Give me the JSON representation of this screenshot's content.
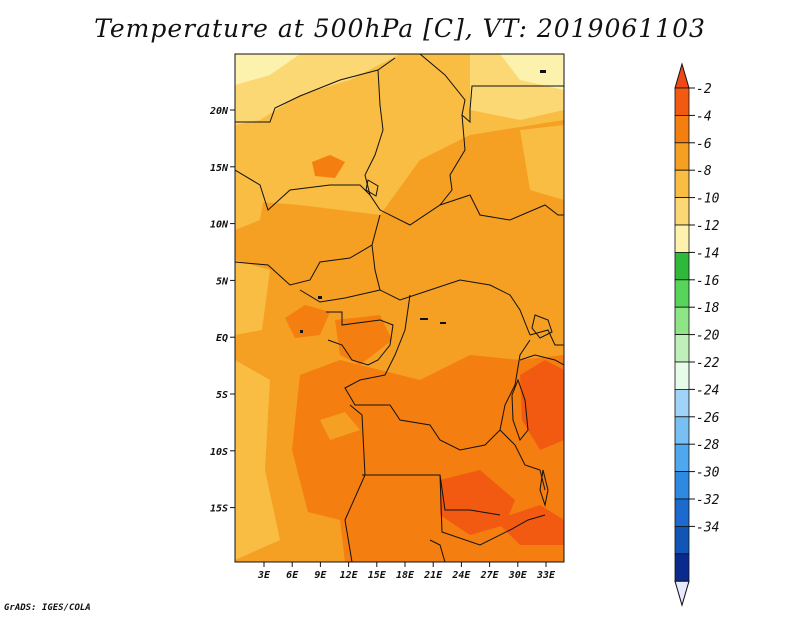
{
  "title": "Temperature at 500hPa [C], VT: 2019061103",
  "credit": "GrADS: IGES/COLA",
  "map": {
    "lat_labels": [
      "20N",
      "15N",
      "10N",
      "5N",
      "EQ",
      "5S",
      "10S",
      "15S"
    ],
    "lon_labels": [
      "3E",
      "6E",
      "9E",
      "12E",
      "15E",
      "18E",
      "21E",
      "24E",
      "27E",
      "30E",
      "33E"
    ]
  },
  "colorbar": {
    "labels": [
      "-2",
      "-4",
      "-6",
      "-8",
      "-10",
      "-12",
      "-14",
      "-16",
      "-18",
      "-20",
      "-22",
      "-24",
      "-26",
      "-28",
      "-30",
      "-32",
      "-34"
    ],
    "colors": [
      "#f25a12",
      "#f47e0f",
      "#f5a022",
      "#f8bd42",
      "#fbd873",
      "#fcf1ad",
      "#2fb83a",
      "#57d45a",
      "#8ee586",
      "#bff0b9",
      "#e6fbe8",
      "#9fd3f7",
      "#78bff3",
      "#4fa7ee",
      "#2e89e3",
      "#1c6acd",
      "#1155b6",
      "#0b2a8e"
    ],
    "extend_low_color": "#e8e8ff",
    "extend_high_color": "#f04814"
  }
}
